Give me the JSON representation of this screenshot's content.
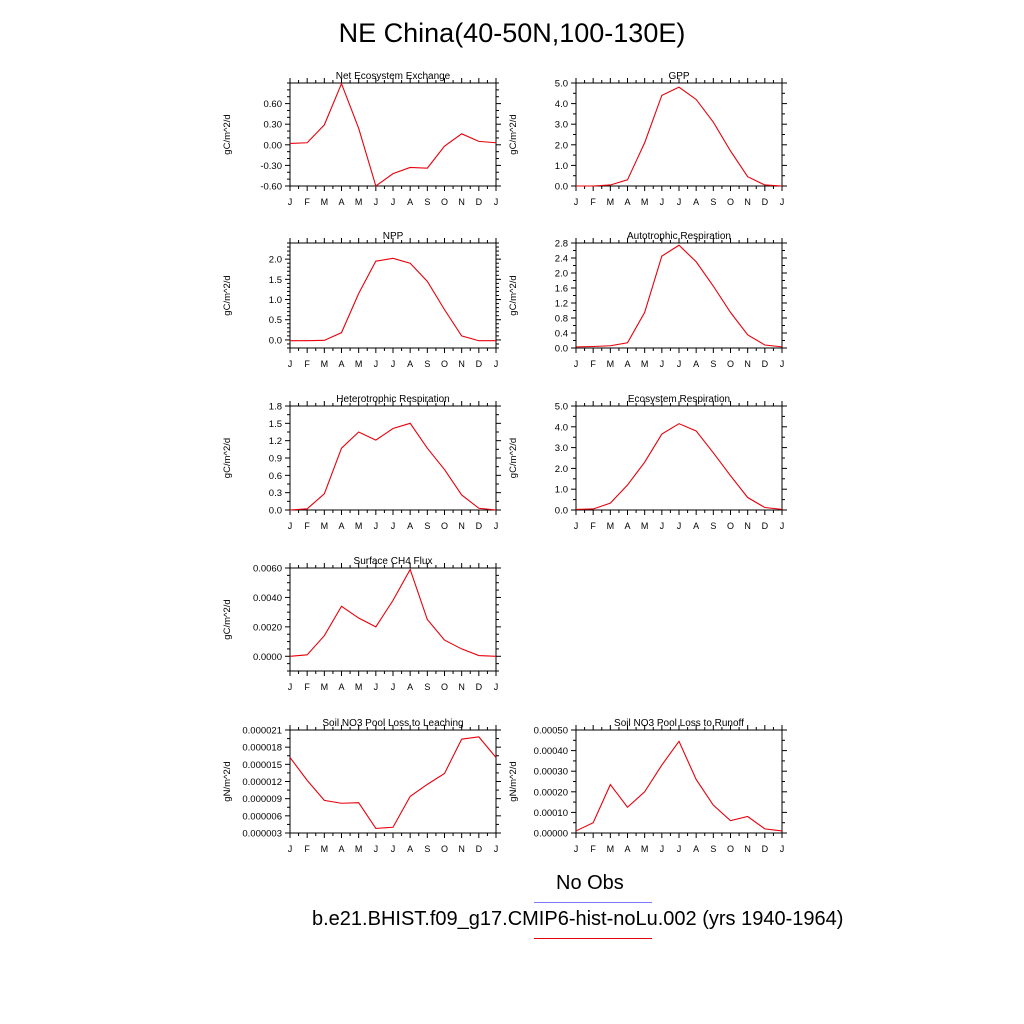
{
  "page_title": "NE China(40-50N,100-130E)",
  "colors": {
    "series": "#e8000b",
    "obs_line": "#7b7bff"
  },
  "legend": {
    "obs_label": "No Obs",
    "model_label": "b.e21.BHIST.f09_g17.CMIP6-hist-noLu.002 (yrs 1940-1964)"
  },
  "chart_data": [
    {
      "type": "line",
      "title": "Net Ecosystem Exchange",
      "ylabel": "gC/m^2/d",
      "xticks": [
        "J",
        "F",
        "M",
        "A",
        "M",
        "J",
        "J",
        "A",
        "S",
        "O",
        "N",
        "D",
        "J"
      ],
      "x": [
        0,
        1,
        2,
        3,
        4,
        5,
        6,
        7,
        8,
        9,
        10,
        11,
        12
      ],
      "values": [
        0.02,
        0.03,
        0.29,
        0.89,
        0.24,
        -0.6,
        -0.42,
        -0.33,
        -0.34,
        -0.02,
        0.16,
        0.05,
        0.03
      ],
      "ylim": [
        -0.6,
        0.9
      ],
      "yticks": [
        -0.6,
        -0.3,
        0.0,
        0.3,
        0.6
      ],
      "ytick_labels": [
        "-0.60",
        "-0.30",
        "0.00",
        "0.30",
        "0.60"
      ],
      "ytick_minor": 0.1
    },
    {
      "type": "line",
      "title": "GPP",
      "ylabel": "gC/m^2/d",
      "xticks": [
        "J",
        "F",
        "M",
        "A",
        "M",
        "J",
        "J",
        "A",
        "S",
        "O",
        "N",
        "D",
        "J"
      ],
      "x": [
        0,
        1,
        2,
        3,
        4,
        5,
        6,
        7,
        8,
        9,
        10,
        11,
        12
      ],
      "values": [
        0.0,
        0.0,
        0.05,
        0.3,
        2.1,
        4.4,
        4.8,
        4.2,
        3.1,
        1.7,
        0.45,
        0.05,
        0.0
      ],
      "ylim": [
        0,
        5
      ],
      "yticks": [
        0,
        1,
        2,
        3,
        4,
        5
      ],
      "ytick_labels": [
        "0.0",
        "1.0",
        "2.0",
        "3.0",
        "4.0",
        "5.0"
      ],
      "ytick_minor": 0.5
    },
    {
      "type": "line",
      "title": "NPP",
      "ylabel": "gC/m^2/d",
      "xticks": [
        "J",
        "F",
        "M",
        "A",
        "M",
        "J",
        "J",
        "A",
        "S",
        "O",
        "N",
        "D",
        "J"
      ],
      "x": [
        0,
        1,
        2,
        3,
        4,
        5,
        6,
        7,
        8,
        9,
        10,
        11,
        12
      ],
      "values": [
        -0.02,
        -0.02,
        -0.01,
        0.18,
        1.15,
        1.95,
        2.02,
        1.9,
        1.45,
        0.75,
        0.1,
        -0.02,
        -0.02
      ],
      "ylim": [
        -0.2,
        2.4
      ],
      "yticks": [
        0,
        0.5,
        1,
        1.5,
        2
      ],
      "ytick_labels": [
        "0.0",
        "0.5",
        "1.0",
        "1.5",
        "2.0"
      ],
      "ytick_minor": 0.1
    },
    {
      "type": "line",
      "title": "Autotrophic Respiration",
      "ylabel": "gC/m^2/d",
      "xticks": [
        "J",
        "F",
        "M",
        "A",
        "M",
        "J",
        "J",
        "A",
        "S",
        "O",
        "N",
        "D",
        "J"
      ],
      "x": [
        0,
        1,
        2,
        3,
        4,
        5,
        6,
        7,
        8,
        9,
        10,
        11,
        12
      ],
      "values": [
        0.03,
        0.04,
        0.06,
        0.14,
        0.95,
        2.45,
        2.74,
        2.3,
        1.65,
        0.95,
        0.35,
        0.08,
        0.03
      ],
      "ylim": [
        0,
        2.8
      ],
      "yticks": [
        0,
        0.4,
        0.8,
        1.2,
        1.6,
        2.0,
        2.4,
        2.8
      ],
      "ytick_labels": [
        "0.0",
        "0.4",
        "0.8",
        "1.2",
        "1.6",
        "2.0",
        "2.4",
        "2.8"
      ],
      "ytick_minor": 0.2
    },
    {
      "type": "line",
      "title": "Heterotrophic Respiration",
      "ylabel": "gC/m^2/d",
      "xticks": [
        "J",
        "F",
        "M",
        "A",
        "M",
        "J",
        "J",
        "A",
        "S",
        "O",
        "N",
        "D",
        "J"
      ],
      "x": [
        0,
        1,
        2,
        3,
        4,
        5,
        6,
        7,
        8,
        9,
        10,
        11,
        12
      ],
      "values": [
        0.0,
        0.02,
        0.28,
        1.07,
        1.35,
        1.21,
        1.41,
        1.5,
        1.07,
        0.7,
        0.26,
        0.03,
        0.0
      ],
      "ylim": [
        0,
        1.8
      ],
      "yticks": [
        0,
        0.3,
        0.6,
        0.9,
        1.2,
        1.5,
        1.8
      ],
      "ytick_labels": [
        "0.0",
        "0.3",
        "0.6",
        "0.9",
        "1.2",
        "1.5",
        "1.8"
      ],
      "ytick_minor": 0.15
    },
    {
      "type": "line",
      "title": "Ecosystem Respiration",
      "ylabel": "gC/m^2/d",
      "xticks": [
        "J",
        "F",
        "M",
        "A",
        "M",
        "J",
        "J",
        "A",
        "S",
        "O",
        "N",
        "D",
        "J"
      ],
      "x": [
        0,
        1,
        2,
        3,
        4,
        5,
        6,
        7,
        8,
        9,
        10,
        11,
        12
      ],
      "values": [
        0.03,
        0.05,
        0.33,
        1.2,
        2.3,
        3.65,
        4.15,
        3.8,
        2.75,
        1.65,
        0.6,
        0.12,
        0.03
      ],
      "ylim": [
        0,
        5
      ],
      "yticks": [
        0,
        1,
        2,
        3,
        4,
        5
      ],
      "ytick_labels": [
        "0.0",
        "1.0",
        "2.0",
        "3.0",
        "4.0",
        "5.0"
      ],
      "ytick_minor": 0.5
    },
    {
      "type": "line",
      "title": "Surface CH4 Flux",
      "ylabel": "gC/m^2/d",
      "xticks": [
        "J",
        "F",
        "M",
        "A",
        "M",
        "J",
        "J",
        "A",
        "S",
        "O",
        "N",
        "D",
        "J"
      ],
      "x": [
        0,
        1,
        2,
        3,
        4,
        5,
        6,
        7,
        8,
        9,
        10,
        11,
        12
      ],
      "values": [
        0.0,
        0.0001,
        0.0014,
        0.0034,
        0.0026,
        0.002,
        0.0038,
        0.0059,
        0.0025,
        0.0011,
        0.0005,
        5e-05,
        0.0
      ],
      "ylim": [
        -0.001,
        0.006
      ],
      "yticks": [
        0,
        0.002,
        0.004,
        0.006
      ],
      "ytick_labels": [
        "0.0000",
        "0.0020",
        "0.0040",
        "0.0060"
      ],
      "ytick_minor": 0.0005
    },
    {
      "type": "line",
      "title": "Soil NO3 Pool Loss to Leaching",
      "ylabel": "gN/m^2/d",
      "xticks": [
        "J",
        "F",
        "M",
        "A",
        "M",
        "J",
        "J",
        "A",
        "S",
        "O",
        "N",
        "D",
        "J"
      ],
      "x": [
        0,
        1,
        2,
        3,
        4,
        5,
        6,
        7,
        8,
        9,
        10,
        11,
        12
      ],
      "values": [
        1.62e-05,
        1.22e-05,
        8.7e-06,
        8.2e-06,
        8.3e-06,
        3.8e-06,
        4e-06,
        9.4e-06,
        1.15e-05,
        1.34e-05,
        1.94e-05,
        1.98e-05,
        1.62e-05
      ],
      "ylim": [
        3e-06,
        2.1e-05
      ],
      "yticks": [
        3e-06,
        6e-06,
        9e-06,
        1.2e-05,
        1.5e-05,
        1.8e-05,
        2.1e-05
      ],
      "ytick_labels": [
        "0.000003",
        "0.000006",
        "0.000009",
        "0.000012",
        "0.000015",
        "0.000018",
        "0.000021"
      ],
      "ytick_minor": 1.5e-06
    },
    {
      "type": "line",
      "title": "Soil NO3 Pool Loss to Runoff",
      "ylabel": "gN/m^2/d",
      "xticks": [
        "J",
        "F",
        "M",
        "A",
        "M",
        "J",
        "J",
        "A",
        "S",
        "O",
        "N",
        "D",
        "J"
      ],
      "x": [
        0,
        1,
        2,
        3,
        4,
        5,
        6,
        7,
        8,
        9,
        10,
        11,
        12
      ],
      "values": [
        1e-05,
        5e-05,
        0.000235,
        0.000125,
        0.0002,
        0.00033,
        0.000445,
        0.00026,
        0.000135,
        6e-05,
        8e-05,
        2e-05,
        1e-05
      ],
      "ylim": [
        0,
        0.0005
      ],
      "yticks": [
        0,
        0.0001,
        0.0002,
        0.0003,
        0.0004,
        0.0005
      ],
      "ytick_labels": [
        "0.00000",
        "0.00010",
        "0.00020",
        "0.00030",
        "0.00040",
        "0.00050"
      ],
      "ytick_minor": 5e-05
    }
  ]
}
